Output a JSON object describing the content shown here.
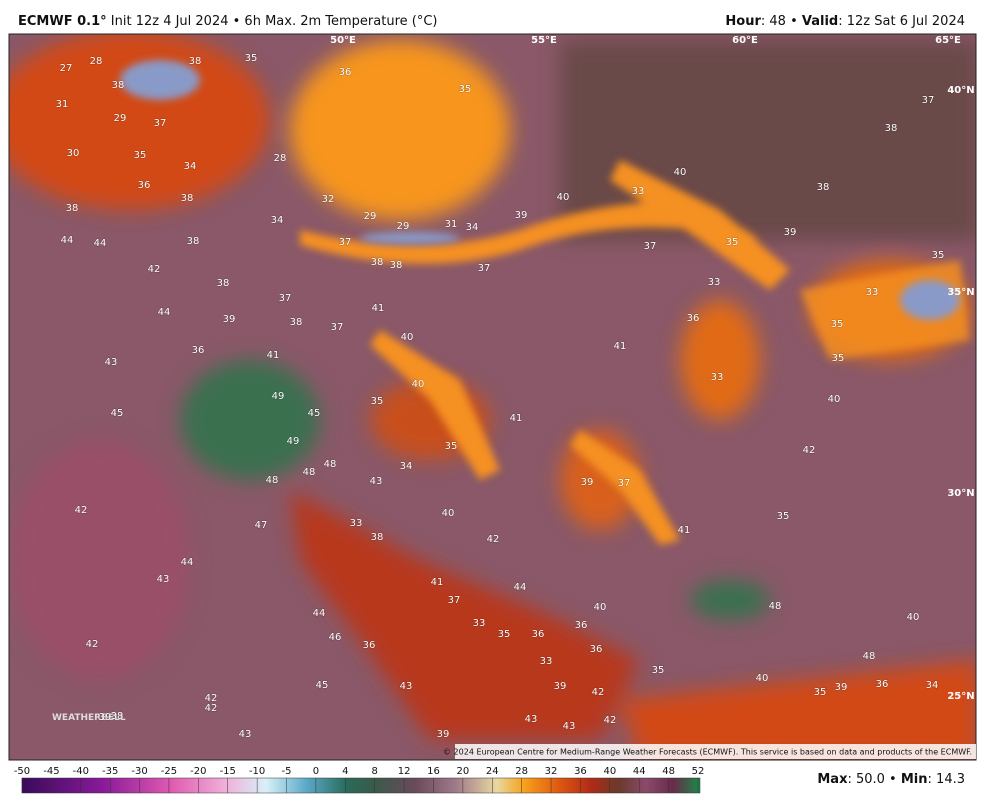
{
  "header": {
    "model": "ECMWF 0.1°",
    "description": "Init 12z 4 Jul 2024 • 6h Max. 2m Temperature (°C)",
    "hour_label": "Hour",
    "hour_text": ": 48 •",
    "valid_label": "Valid",
    "valid_text": ": 12z Sat 6 Jul 2024"
  },
  "map": {
    "longitudes": [
      "50°E",
      "55°E",
      "60°E",
      "65°E"
    ],
    "latitudes": [
      "40°N",
      "35°N",
      "30°N",
      "25°N"
    ],
    "labels": [
      27,
      28,
      38,
      35,
      36,
      35,
      38,
      31,
      37,
      29,
      30,
      35,
      34,
      28,
      36,
      38,
      32,
      38,
      34,
      29,
      29,
      31,
      34,
      39,
      40,
      33,
      40,
      37,
      38,
      38,
      44,
      44,
      38,
      37,
      42,
      38,
      38,
      37,
      37,
      35,
      39,
      35,
      38,
      37,
      33,
      33,
      44,
      39,
      38,
      37,
      41,
      36,
      35,
      36,
      41,
      40,
      41,
      35,
      43,
      33,
      40,
      49,
      35,
      40,
      45,
      45,
      41,
      49,
      35,
      42,
      48,
      48,
      34,
      48,
      43,
      39,
      37,
      42,
      40,
      35,
      47,
      33,
      38,
      42,
      41,
      44,
      43,
      41,
      44,
      37,
      40,
      48,
      44,
      33,
      35,
      36,
      36,
      40,
      46,
      36,
      36,
      33,
      48,
      42,
      35,
      40,
      39,
      43,
      42,
      35,
      39,
      36,
      34,
      45,
      42,
      42,
      39,
      38,
      43,
      43,
      42,
      39,
      43
    ],
    "copyright": "© 2024 European Centre for Medium-Range Weather Forecasts (ECMWF). This service is based on data and products of the ECMWF.",
    "logo": "WEATHERBELL"
  },
  "colorbar": {
    "ticks": [
      -50,
      -45,
      -40,
      -35,
      -30,
      -25,
      -20,
      -15,
      -10,
      -5,
      0,
      4,
      8,
      12,
      16,
      20,
      24,
      28,
      32,
      36,
      40,
      44,
      48,
      52
    ]
  },
  "footer": {
    "max_label": "Max",
    "max_text": ": 50.0 •",
    "min_label": "Min",
    "min_text": ": 14.3"
  }
}
